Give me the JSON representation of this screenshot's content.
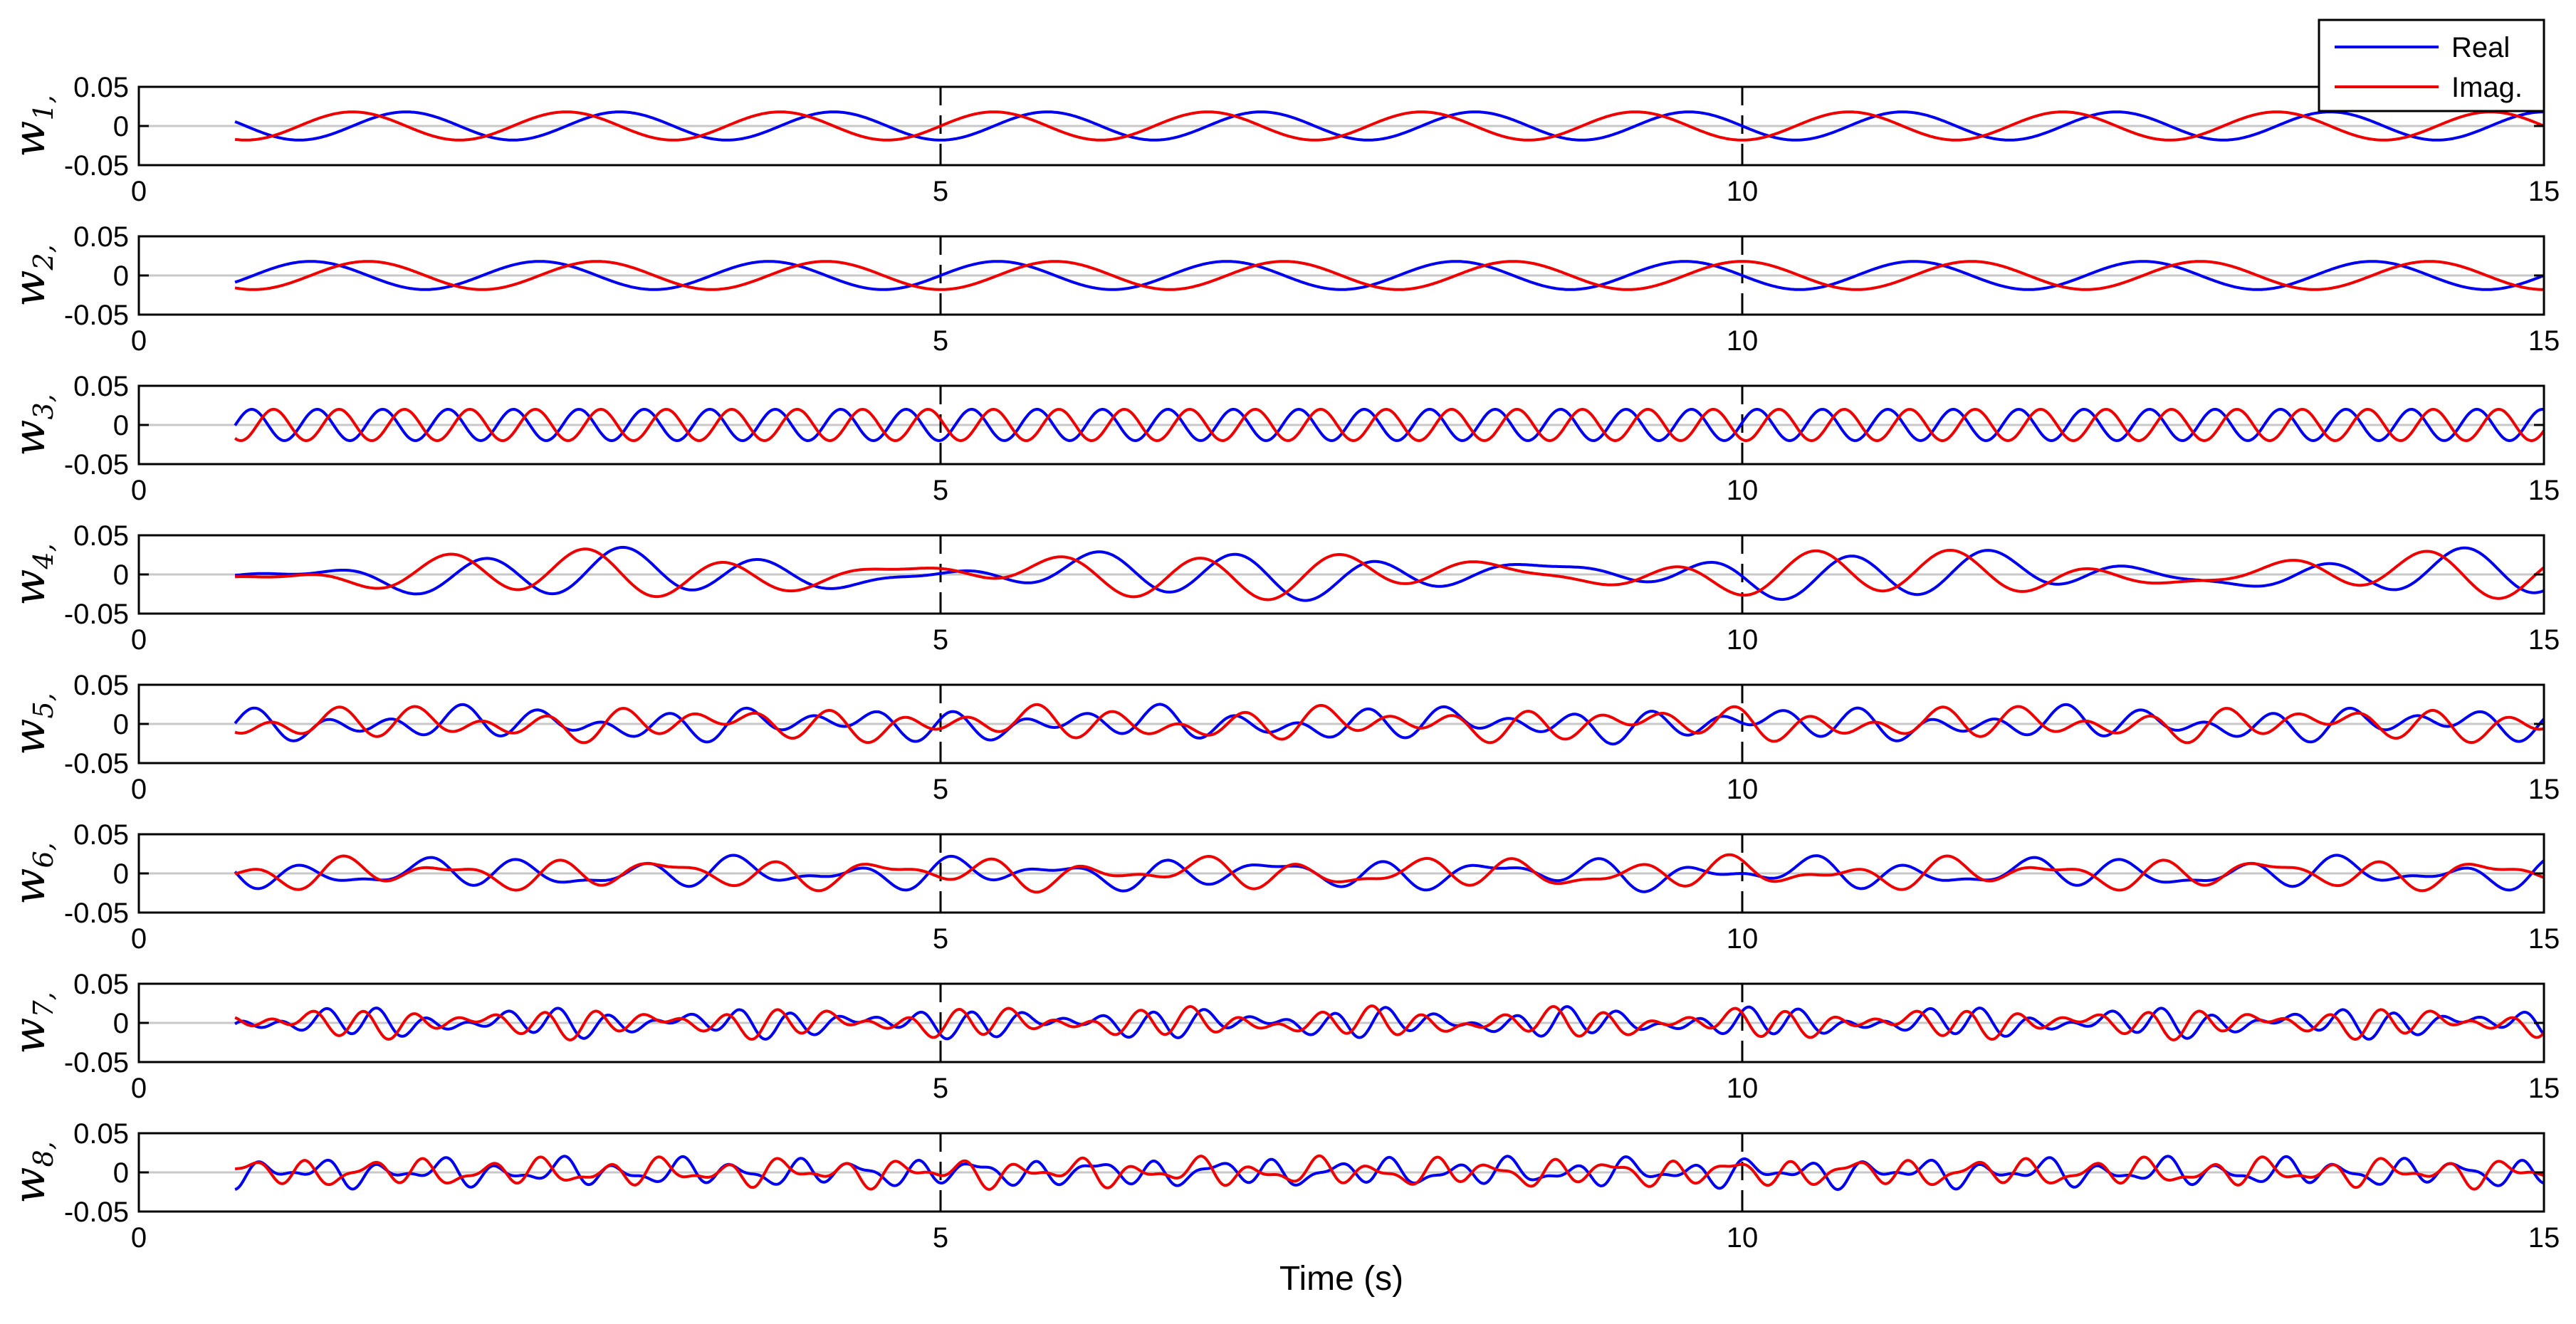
{
  "colors": {
    "real": "#0000ee",
    "imag": "#ee0000",
    "axis": "#000000",
    "zero_line": "#c8c8c8"
  },
  "chart_data": {
    "type": "line",
    "xlabel": "Time (s)",
    "xlim": [
      0,
      15
    ],
    "ylim": [
      -0.05,
      0.05
    ],
    "xticks": [
      "0",
      "5",
      "10",
      "15"
    ],
    "yticks": [
      "0.05",
      "0",
      "-0.05"
    ],
    "vertical_dashed_lines_at": [
      5,
      10
    ],
    "legend": {
      "placement": "top-right",
      "entries": [
        "Real",
        "Imag."
      ]
    },
    "panels": [
      {
        "ylabel": "w",
        "subscript": "1,",
        "series": [
          {
            "name": "Real",
            "start": 0.6,
            "end": 15,
            "components": [
              [
                0.018,
                0.75,
                0.0
              ]
            ]
          },
          {
            "name": "Imag.",
            "start": 0.6,
            "end": 15,
            "components": [
              [
                0.018,
                0.75,
                1.5708
              ]
            ]
          }
        ]
      },
      {
        "ylabel": "w",
        "subscript": "2,",
        "series": [
          {
            "name": "Real",
            "start": 0.6,
            "end": 15,
            "components": [
              [
                -0.018,
                0.7,
                0.0
              ]
            ]
          },
          {
            "name": "Imag.",
            "start": 0.6,
            "end": 15,
            "components": [
              [
                0.018,
                0.7,
                1.5708
              ]
            ]
          }
        ]
      },
      {
        "ylabel": "w",
        "subscript": "3,",
        "series": [
          {
            "name": "Real",
            "start": 0.6,
            "end": 15,
            "components": [
              [
                0.02,
                2.45,
                3.3
              ]
            ]
          },
          {
            "name": "Imag.",
            "start": 0.6,
            "end": 15,
            "components": [
              [
                0.02,
                2.45,
                1.2
              ]
            ]
          }
        ]
      },
      {
        "ylabel": "w",
        "subscript": "4,",
        "series": [
          {
            "name": "Real",
            "start": 0.6,
            "end": 15,
            "components": [
              [
                0.016,
                1.05,
                0.4
              ],
              [
                0.012,
                1.3,
                2.2
              ],
              [
                0.007,
                0.35,
                1.0
              ]
            ]
          },
          {
            "name": "Imag.",
            "start": 0.6,
            "end": 15,
            "components": [
              [
                0.016,
                1.05,
                2.0
              ],
              [
                0.012,
                1.3,
                3.9
              ],
              [
                0.007,
                0.35,
                2.6
              ]
            ]
          }
        ]
      },
      {
        "ylabel": "w",
        "subscript": "5,",
        "series": [
          {
            "name": "Real",
            "start": 0.6,
            "end": 15,
            "components": [
              [
                0.013,
                2.3,
                3.7
              ],
              [
                0.008,
                1.6,
                0.5
              ],
              [
                0.005,
                0.5,
                1.0
              ]
            ]
          },
          {
            "name": "Imag.",
            "start": 0.6,
            "end": 15,
            "components": [
              [
                0.013,
                2.3,
                2.1
              ],
              [
                0.008,
                1.6,
                2.3
              ],
              [
                0.005,
                0.5,
                3.0
              ]
            ]
          }
        ]
      },
      {
        "ylabel": "w",
        "subscript": "6,",
        "series": [
          {
            "name": "Real",
            "start": 0.6,
            "end": 15,
            "components": [
              [
                0.012,
                1.5,
                3.9
              ],
              [
                0.008,
                2.2,
                1.0
              ],
              [
                0.005,
                0.6,
                0.3
              ]
            ]
          },
          {
            "name": "Imag.",
            "start": 0.6,
            "end": 15,
            "components": [
              [
                0.012,
                1.5,
                2.0
              ],
              [
                0.008,
                2.2,
                3.0
              ],
              [
                0.005,
                0.6,
                2.0
              ]
            ]
          }
        ]
      },
      {
        "ylabel": "w",
        "subscript": "7,",
        "series": [
          {
            "name": "Real",
            "start": 0.6,
            "end": 15,
            "components": [
              [
                0.01,
                3.5,
                0.5
              ],
              [
                0.008,
                2.7,
                1.3
              ],
              [
                0.004,
                0.9,
                0.7
              ]
            ]
          },
          {
            "name": "Imag.",
            "start": 0.6,
            "end": 15,
            "components": [
              [
                0.01,
                3.5,
                2.1
              ],
              [
                0.008,
                2.7,
                3.0
              ],
              [
                0.004,
                0.9,
                2.4
              ]
            ]
          }
        ]
      },
      {
        "ylabel": "w",
        "subscript": "8,",
        "series": [
          {
            "name": "Real",
            "start": 0.6,
            "end": 15,
            "components": [
              [
                0.011,
                2.7,
                0.9
              ],
              [
                0.007,
                4.1,
                1.9
              ],
              [
                0.004,
                1.2,
                0.4
              ]
            ]
          },
          {
            "name": "Imag.",
            "start": 0.6,
            "end": 15,
            "components": [
              [
                0.011,
                2.7,
                2.6
              ],
              [
                0.007,
                4.1,
                0.2
              ],
              [
                0.004,
                1.2,
                2.2
              ]
            ]
          }
        ]
      }
    ]
  }
}
